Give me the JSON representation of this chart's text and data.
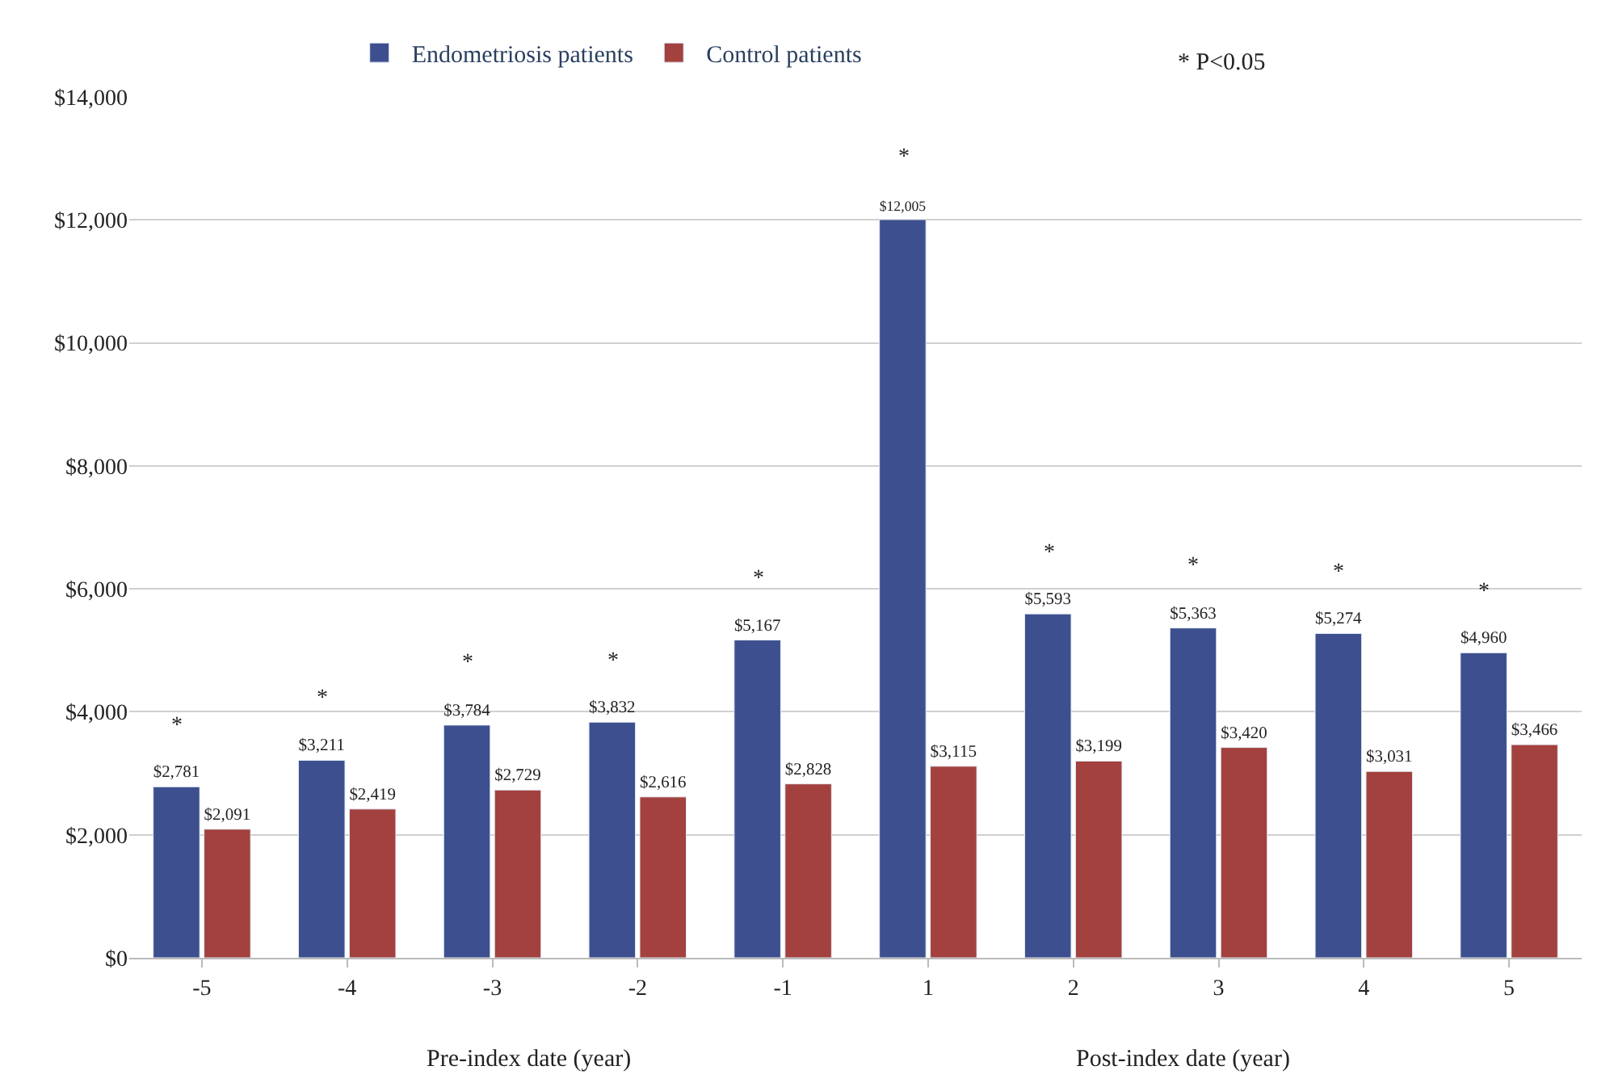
{
  "chart_data": {
    "type": "bar",
    "categories": [
      "-5",
      "-4",
      "-3",
      "-2",
      "-1",
      "1",
      "2",
      "3",
      "4",
      "5"
    ],
    "series": [
      {
        "name": "Endometriosis patients",
        "color": "#3d4f8e",
        "values": [
          2781,
          3211,
          3784,
          3832,
          5167,
          12005,
          5593,
          5363,
          5274,
          4960
        ],
        "value_labels": [
          "$2,781",
          "$3,211",
          "$3,784",
          "$3,832",
          "$5,167",
          "$12,005",
          "$5,593",
          "$5,363",
          "$5,274",
          "$4,960"
        ]
      },
      {
        "name": "Control patients",
        "color": "#a2413e",
        "values": [
          2091,
          2419,
          2729,
          2616,
          2828,
          3115,
          3199,
          3420,
          3031,
          3466
        ],
        "value_labels": [
          "$2,091",
          "$2,419",
          "$2,729",
          "$2,616",
          "$2,828",
          "$3,115",
          "$3,199",
          "$3,420",
          "$3,031",
          "$3,466"
        ]
      }
    ],
    "ylim": [
      0,
      14000
    ],
    "yticks": [
      {
        "value": 0,
        "label": "$0"
      },
      {
        "value": 2000,
        "label": "$2,000"
      },
      {
        "value": 4000,
        "label": "$4,000"
      },
      {
        "value": 6000,
        "label": "$6,000"
      },
      {
        "value": 8000,
        "label": "$8,000"
      },
      {
        "value": 10000,
        "label": "$10,000"
      },
      {
        "value": 12000,
        "label": "$12,000"
      },
      {
        "value": 14000,
        "label": "$14,000"
      }
    ],
    "grid": "y",
    "legend": "top",
    "annotations": [
      "* P<0.05",
      "Pre-index date (year)",
      "Post-index date (year)",
      {
        "text": "*",
        "x": "-5",
        "y": 2781
      },
      {
        "text": "*",
        "x": "-4",
        "y": 3211
      },
      {
        "text": "*",
        "x": "-3",
        "y": 3784
      },
      {
        "text": "*",
        "x": "-2",
        "y": 3832
      },
      {
        "text": "*",
        "x": "-1",
        "y": 5167
      },
      {
        "text": "*",
        "x": "1",
        "y": 12005
      },
      {
        "text": "*",
        "x": "2",
        "y": 5593
      },
      {
        "text": "*",
        "x": "3",
        "y": 5363
      },
      {
        "text": "*",
        "x": "4",
        "y": 5274
      },
      {
        "text": "*",
        "x": "5",
        "y": 4960
      }
    ]
  }
}
